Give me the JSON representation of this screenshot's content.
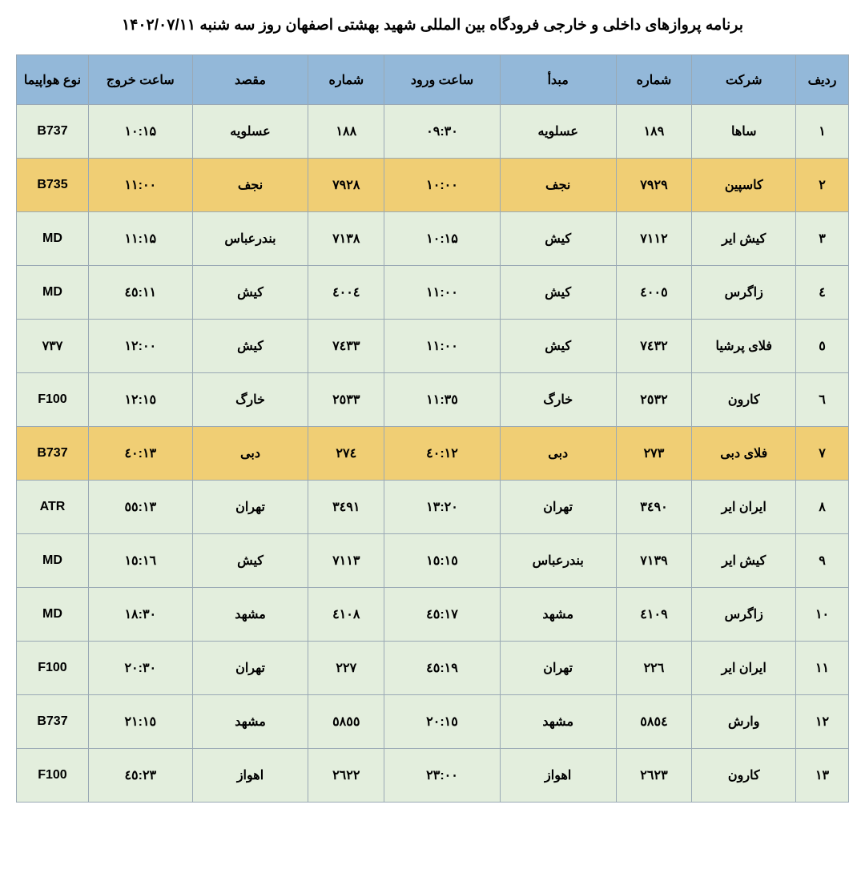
{
  "title": "برنامه پروازهای داخلی و خارجی فرودگاه بین المللی شهید بهشتی اصفهان روز  سه شنبه ۱۴۰۲/۰۷/۱۱",
  "headers": {
    "radif": "ردیف",
    "airline": "شرکت",
    "num_in": "شماره",
    "origin": "مبدأ",
    "time_in": "ساعت ورود",
    "num_out": "شماره",
    "dest": "مقصد",
    "time_out": "ساعت خروج",
    "aircraft": "نوع هواپیما"
  },
  "rows": [
    {
      "highlight": false,
      "radif": "۱",
      "airline": "ساها",
      "num_in": "۱۸۹",
      "origin": "عسلویه",
      "time_in": "۰۹:۳۰",
      "num_out": "۱۸۸",
      "dest": "عسلویه",
      "time_out": "۱۰:۱۵",
      "aircraft": "B737"
    },
    {
      "highlight": true,
      "radif": "۲",
      "airline": "کاسپین",
      "num_in": "۷۹۲۹",
      "origin": "نجف",
      "time_in": "۱۰:۰۰",
      "num_out": "۷۹۲۸",
      "dest": "نجف",
      "time_out": "۱۱:۰۰",
      "aircraft": "B735"
    },
    {
      "highlight": false,
      "radif": "۳",
      "airline": "کیش ایر",
      "num_in": "۷۱۱۲",
      "origin": "کیش",
      "time_in": "۱۰:۱۵",
      "num_out": "۷۱۳۸",
      "dest": "بندرعباس",
      "time_out": "۱۱:۱۵",
      "aircraft": "MD"
    },
    {
      "highlight": false,
      "radif": "٤",
      "airline": "زاگرس",
      "num_in": "٤۰۰٥",
      "origin": "کیش",
      "time_in": "۱۱:۰۰",
      "num_out": "٤۰۰٤",
      "dest": "کیش",
      "time_out": "۱۱:٤٥",
      "aircraft": "MD"
    },
    {
      "highlight": false,
      "radif": "٥",
      "airline": "فلای پرشیا",
      "num_in": "۷٤۳۲",
      "origin": "کیش",
      "time_in": "۱۱:۰۰",
      "num_out": "۷٤۳۳",
      "dest": "کیش",
      "time_out": "۱۲:۰۰",
      "aircraft": "۷۳۷"
    },
    {
      "highlight": false,
      "radif": "٦",
      "airline": "کارون",
      "num_in": "۲٥۳۲",
      "origin": "خارگ",
      "time_in": "۱۱:۳٥",
      "num_out": "۲٥۳۳",
      "dest": "خارگ",
      "time_out": "۱۲:۱٥",
      "aircraft": "F100"
    },
    {
      "highlight": true,
      "radif": "۷",
      "airline": "فلای دبی",
      "num_in": "۲۷۳",
      "origin": "دبی",
      "time_in": "۱۲:٤۰",
      "num_out": "۲۷٤",
      "dest": "دبی",
      "time_out": "۱۳:٤۰",
      "aircraft": "B737"
    },
    {
      "highlight": false,
      "radif": "۸",
      "airline": "ایران ایر",
      "num_in": "۳٤۹۰",
      "origin": "تهران",
      "time_in": "۱۳:۲۰",
      "num_out": "۳٤۹۱",
      "dest": "تهران",
      "time_out": "۱۳:٥٥",
      "aircraft": "ATR"
    },
    {
      "highlight": false,
      "radif": "۹",
      "airline": "کیش ایر",
      "num_in": "۷۱۳۹",
      "origin": "بندرعباس",
      "time_in": "۱٥:۱٥",
      "num_out": "۷۱۱۳",
      "dest": "کیش",
      "time_out": "۱٦:۱٥",
      "aircraft": "MD"
    },
    {
      "highlight": false,
      "radif": "۱۰",
      "airline": "زاگرس",
      "num_in": "٤۱۰۹",
      "origin": "مشهد",
      "time_in": "۱۷:٤٥",
      "num_out": "٤۱۰۸",
      "dest": "مشهد",
      "time_out": "۱۸:۳۰",
      "aircraft": "MD"
    },
    {
      "highlight": false,
      "radif": "۱۱",
      "airline": "ایران ایر",
      "num_in": "۲۲٦",
      "origin": "تهران",
      "time_in": "۱۹:٤٥",
      "num_out": "۲۲۷",
      "dest": "تهران",
      "time_out": "۲۰:۳۰",
      "aircraft": "F100"
    },
    {
      "highlight": false,
      "radif": "۱۲",
      "airline": "وارش",
      "num_in": "٥۸٥٤",
      "origin": "مشهد",
      "time_in": "۲۰:۱٥",
      "num_out": "٥۸٥٥",
      "dest": "مشهد",
      "time_out": "۲۱:۱٥",
      "aircraft": "B737"
    },
    {
      "highlight": false,
      "radif": "۱۳",
      "airline": "کارون",
      "num_in": "۲٦۲۳",
      "origin": "اهواز",
      "time_in": "۲۳:۰۰",
      "num_out": "۲٦۲۲",
      "dest": "اهواز",
      "time_out": "۲۳:٤٥",
      "aircraft": "F100"
    }
  ],
  "colors": {
    "header_bg": "#93b8d9",
    "normal_bg": "#e3eedd",
    "highlight_bg": "#f0ce74",
    "border": "#9aa9b5",
    "text": "#000000",
    "page_bg": "#ffffff"
  }
}
